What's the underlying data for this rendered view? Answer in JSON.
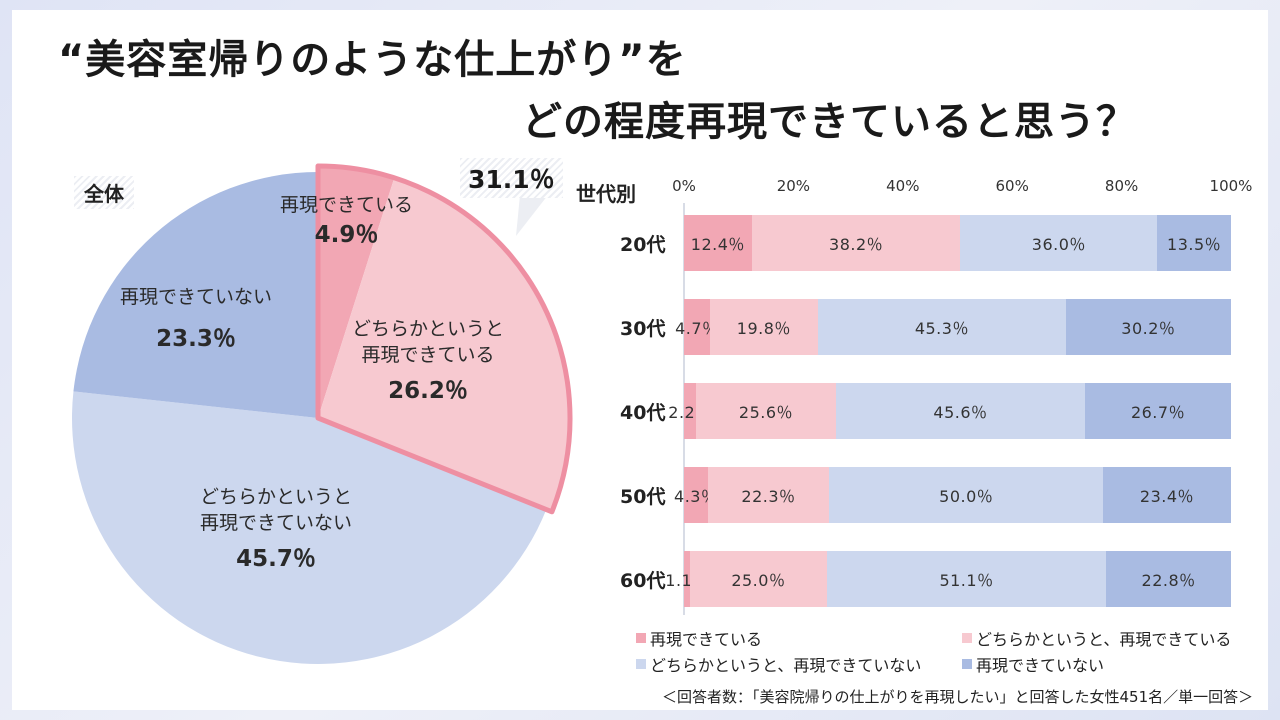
{
  "title": {
    "line1": "“美容室帰りのような仕上がり”を",
    "line2": "どの程度再現できていると思う？"
  },
  "overall_label": "全体",
  "by_age_label": "世代別",
  "footnote": "＜回答者数：「美容院帰りの仕上がりを再現したい」と回答した女性451名／単一回答＞",
  "colors": {
    "c1": "#f2a7b4",
    "c2": "#f7c9d0",
    "c3": "#ccd7ee",
    "c4": "#a9bbe2",
    "highlight": "#ee8fa2"
  },
  "chart_data": [
    {
      "type": "pie",
      "title": "全体",
      "slices": [
        {
          "label_line1": "再現できている",
          "label_line2": "",
          "value": 4.9,
          "value_text": "4.9％",
          "color": "#f2a7b4"
        },
        {
          "label_line1": "どちらかというと",
          "label_line2": "再現できている",
          "value": 26.2,
          "value_text": "26.2％",
          "color": "#f7c9d0"
        },
        {
          "label_line1": "どちらかというと",
          "label_line2": "再現できていない",
          "value": 45.7,
          "value_text": "45.7％",
          "color": "#ccd7ee"
        },
        {
          "label_line1": "再現できていない",
          "label_line2": "",
          "value": 23.3,
          "value_text": "23.3％",
          "color": "#a9bbe2"
        }
      ],
      "callout": "31.1％"
    },
    {
      "type": "bar",
      "orientation": "horizontal",
      "stacked": "percent",
      "title": "世代別",
      "x_ticks": [
        "0%",
        "20%",
        "40%",
        "60%",
        "80%",
        "100%"
      ],
      "xlim": [
        0,
        100
      ],
      "categories": [
        "20代",
        "30代",
        "40代",
        "50代",
        "60代"
      ],
      "series": [
        {
          "name": "再現できている",
          "color": "#f2a7b4",
          "values": [
            12.4,
            4.7,
            2.2,
            4.3,
            1.1
          ],
          "value_texts": [
            "12.4％",
            "4.7％",
            "2.2％",
            "4.3％",
            "1.1％"
          ]
        },
        {
          "name": "どちらかというと、再現できている",
          "color": "#f7c9d0",
          "values": [
            38.2,
            19.8,
            25.6,
            22.3,
            25.0
          ],
          "value_texts": [
            "38.2％",
            "19.8％",
            "25.6％",
            "22.3％",
            "25.0％"
          ]
        },
        {
          "name": "どちらかというと、再現できていない",
          "color": "#ccd7ee",
          "values": [
            36.0,
            45.3,
            45.6,
            50.0,
            51.1
          ],
          "value_texts": [
            "36.0％",
            "45.3％",
            "45.6％",
            "50.0％",
            "51.1％"
          ]
        },
        {
          "name": "再現できていない",
          "color": "#a9bbe2",
          "values": [
            13.5,
            30.2,
            26.7,
            23.4,
            22.8
          ],
          "value_texts": [
            "13.5％",
            "30.2％",
            "26.7％",
            "23.4％",
            "22.8％"
          ]
        }
      ],
      "legend_position": "bottom"
    }
  ]
}
